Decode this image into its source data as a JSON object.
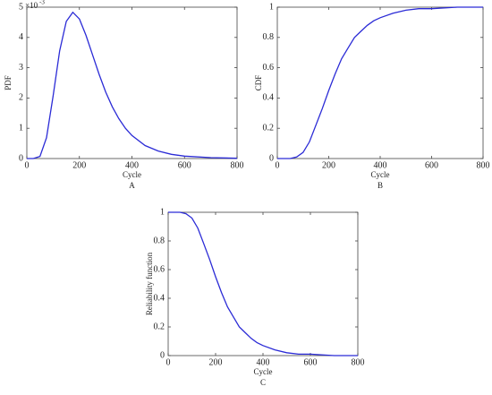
{
  "chart_data": [
    {
      "type": "line",
      "caption": "A",
      "x_label": "Cycle",
      "y_label": "PDF",
      "y_multiplier": "×10",
      "y_multiplier_exponent": "-3",
      "x": [
        0,
        25,
        50,
        75,
        100,
        125,
        150,
        175,
        200,
        225,
        250,
        275,
        300,
        325,
        350,
        375,
        400,
        450,
        500,
        550,
        600,
        700,
        800
      ],
      "values": [
        0,
        0,
        0.07,
        0.69,
        2.07,
        3.56,
        4.53,
        4.83,
        4.61,
        4.07,
        3.43,
        2.78,
        2.2,
        1.71,
        1.32,
        1.0,
        0.76,
        0.43,
        0.25,
        0.14,
        0.08,
        0.03,
        0.01
      ],
      "color": "#2b2bd6",
      "xlim": [
        0,
        800
      ],
      "xticks": [
        0,
        200,
        400,
        600,
        800
      ],
      "ylim": [
        0,
        5
      ],
      "yticks": [
        0,
        1,
        2,
        3,
        4,
        5
      ]
    },
    {
      "type": "line",
      "caption": "B",
      "x_label": "Cycle",
      "y_label": "CDF",
      "x": [
        0,
        25,
        50,
        75,
        100,
        125,
        150,
        175,
        200,
        225,
        250,
        275,
        300,
        325,
        350,
        375,
        400,
        450,
        500,
        550,
        600,
        700,
        800
      ],
      "values": [
        0,
        0,
        0,
        0.01,
        0.04,
        0.11,
        0.22,
        0.33,
        0.45,
        0.56,
        0.66,
        0.73,
        0.8,
        0.84,
        0.88,
        0.91,
        0.93,
        0.96,
        0.98,
        0.99,
        0.99,
        1.0,
        1.0
      ],
      "color": "#2b2bd6",
      "xlim": [
        0,
        800
      ],
      "xticks": [
        0,
        200,
        400,
        600,
        800
      ],
      "ylim": [
        0,
        1
      ],
      "yticks": [
        0,
        0.2,
        0.4,
        0.6,
        0.8,
        1
      ]
    },
    {
      "type": "line",
      "caption": "C",
      "x_label": "Cycle",
      "y_label": "Reliability function",
      "x": [
        0,
        25,
        50,
        75,
        100,
        125,
        150,
        175,
        200,
        225,
        250,
        275,
        300,
        325,
        350,
        375,
        400,
        450,
        500,
        550,
        600,
        700,
        800
      ],
      "values": [
        1,
        1,
        1,
        0.99,
        0.96,
        0.89,
        0.78,
        0.67,
        0.55,
        0.44,
        0.34,
        0.27,
        0.2,
        0.16,
        0.12,
        0.09,
        0.07,
        0.04,
        0.02,
        0.01,
        0.01,
        0,
        0
      ],
      "color": "#2b2bd6",
      "xlim": [
        0,
        800
      ],
      "xticks": [
        0,
        200,
        400,
        600,
        800
      ],
      "ylim": [
        0,
        1
      ],
      "yticks": [
        0,
        0.2,
        0.4,
        0.6,
        0.8,
        1
      ]
    }
  ]
}
